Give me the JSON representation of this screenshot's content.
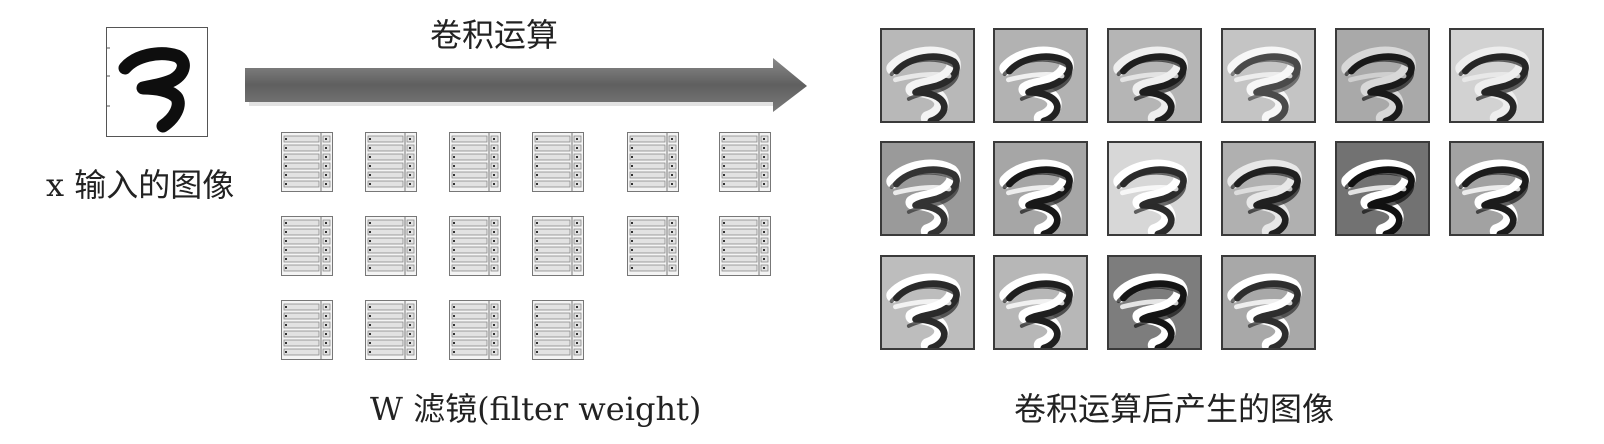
{
  "input": {
    "label": "x 输入的图像",
    "icon": "digit-seven-icon"
  },
  "arrow": {
    "label": "卷积运算"
  },
  "filters": {
    "label": "W 滤镜(filter weight)",
    "rows": [
      6,
      6,
      4
    ],
    "icon": "filter-weight-matrix-icon"
  },
  "outputs": {
    "label": "卷积运算后产生的图像",
    "tiles": [
      {
        "bg": "#b8b8b8",
        "ink": "#2a2a2a",
        "hi": "#f4f4f4"
      },
      {
        "bg": "#b2b2b2",
        "ink": "#222222",
        "hi": "#ffffff"
      },
      {
        "bg": "#b5b5b5",
        "ink": "#1e1e1e",
        "hi": "#efefef"
      },
      {
        "bg": "#c4c4c4",
        "ink": "#4a4a4a",
        "hi": "#f7f7f7"
      },
      {
        "bg": "#a9a9a9",
        "ink": "#1a1a1a",
        "hi": "#d8d8d8"
      },
      {
        "bg": "#d2d2d2",
        "ink": "#262626",
        "hi": "#eeeeee"
      },
      {
        "bg": "#9a9a9a",
        "ink": "#333333",
        "hi": "#ffffff"
      },
      {
        "bg": "#a6a6a6",
        "ink": "#181818",
        "hi": "#ffffff"
      },
      {
        "bg": "#d7d7d7",
        "ink": "#2b2b2b",
        "hi": "#ffffff"
      },
      {
        "bg": "#b0b0b0",
        "ink": "#202020",
        "hi": "#e8e8e8"
      },
      {
        "bg": "#727272",
        "ink": "#111111",
        "hi": "#ffffff"
      },
      {
        "bg": "#a2a2a2",
        "ink": "#1c1c1c",
        "hi": "#ffffff"
      },
      {
        "bg": "#bdbdbd",
        "ink": "#2a2a2a",
        "hi": "#ffffff"
      },
      {
        "bg": "#b7b7b7",
        "ink": "#1f1f1f",
        "hi": "#ffffff"
      },
      {
        "bg": "#7d7d7d",
        "ink": "#151515",
        "hi": "#ffffff"
      },
      {
        "bg": "#a8a8a8",
        "ink": "#2e2e2e",
        "hi": "#ffffff"
      }
    ]
  },
  "colors": {
    "arrow": "#6a6a6a",
    "arrow_shadow": "#9a9a9a"
  }
}
